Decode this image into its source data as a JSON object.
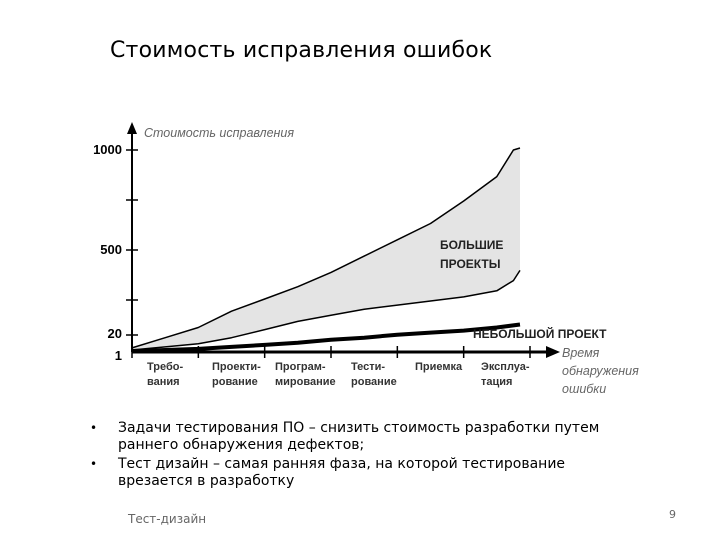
{
  "slide": {
    "title": "Стоимость исправления ошибок",
    "bullets": [
      "Задачи тестирования ПО – снизить стоимость разработки путем раннего обнаружения дефектов;",
      "Тест дизайн – самая ранняя фаза, на которой тестирование врезается в разработку"
    ],
    "footer": "Тест-дизайн",
    "page_number": "9"
  },
  "chart_data": {
    "type": "area",
    "ylabel": "Стоимость исправления",
    "xlabel": "Время обнаружения ошибки",
    "xlabel_lines": [
      "Время",
      "обнаружения",
      "ошибки"
    ],
    "y_ticks": [
      "1000",
      "500",
      "20",
      "1"
    ],
    "x_ticks": [
      [
        "Требо-",
        "вания"
      ],
      [
        "Проекти-",
        "рование"
      ],
      [
        "Програм-",
        "мирование"
      ],
      [
        "Тести-",
        "рование"
      ],
      [
        "Приемка"
      ],
      [
        "Эксплуа-",
        "тация"
      ]
    ],
    "ylim": [
      0,
      1000
    ],
    "xlim": [
      0,
      6
    ],
    "series": [
      {
        "name": "БОЛЬШИЕ ПРОЕКТЫ",
        "x": [
          0,
          0.5,
          1,
          1.5,
          2,
          2.5,
          3,
          3.5,
          4,
          4.5,
          5,
          5.5,
          5.75,
          5.85
        ],
        "values": [
          20,
          70,
          120,
          200,
          260,
          320,
          390,
          470,
          550,
          630,
          740,
          860,
          990,
          1000
        ]
      },
      {
        "name": "",
        "x": [
          0,
          0.5,
          1,
          1.5,
          2,
          2.5,
          3,
          3.5,
          4,
          4.5,
          5,
          5.5,
          5.75,
          5.85
        ],
        "values": [
          10,
          25,
          40,
          70,
          110,
          150,
          180,
          210,
          230,
          250,
          270,
          300,
          350,
          400
        ]
      },
      {
        "name": "НЕБОЛЬШОЙ ПРОЕКТ",
        "x": [
          0,
          0.5,
          1,
          1.5,
          2,
          2.5,
          3,
          3.5,
          4,
          4.5,
          5,
          5.5,
          5.85
        ],
        "values": [
          5,
          10,
          15,
          25,
          35,
          45,
          60,
          70,
          85,
          95,
          105,
          120,
          135
        ]
      }
    ],
    "annotations": [
      {
        "lines": [
          "БОЛЬШИЕ",
          "ПРОЕКТЫ"
        ]
      },
      {
        "lines": [
          "НЕБОЛЬШОЙ ПРОЕКТ"
        ]
      }
    ],
    "fill_color": "#e4e4e4",
    "line_color": "#000000",
    "grid": false
  }
}
